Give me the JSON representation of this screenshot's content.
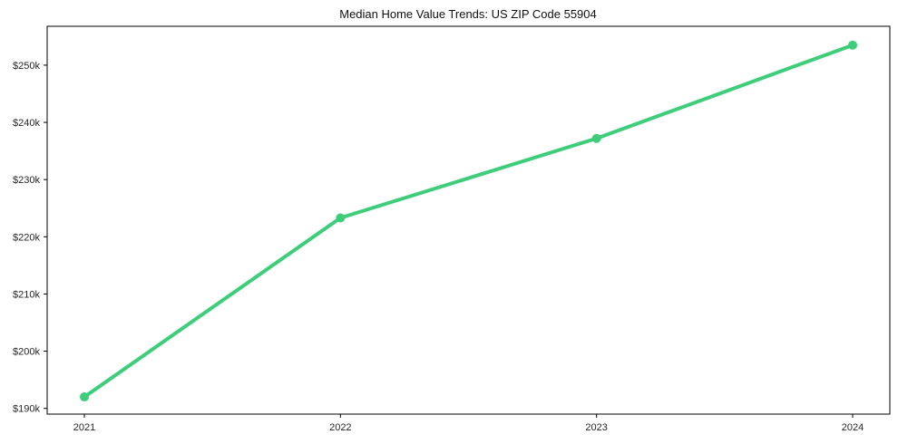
{
  "chart_data": {
    "type": "line",
    "title": "Median Home Value Trends: US ZIP Code 55904",
    "x": [
      "2021",
      "2022",
      "2023",
      "2024"
    ],
    "series": [
      {
        "name": "Median Home Value",
        "values": [
          192000,
          223300,
          237200,
          253500
        ]
      }
    ],
    "xlabel": "",
    "ylabel": "",
    "ylim": [
      189000,
      256800
    ],
    "yticks": [
      190000,
      200000,
      210000,
      220000,
      230000,
      240000,
      250000
    ],
    "ytick_labels": [
      "$190k",
      "$200k",
      "$210k",
      "$220k",
      "$230k",
      "$240k",
      "$250k"
    ],
    "xtick_labels": [
      "2021",
      "2022",
      "2023",
      "2024"
    ],
    "grid": false,
    "legend_position": "none",
    "line_color": "#3ecd7b",
    "marker": "circle",
    "axis_color": "#000000",
    "background_color": "#ffffff"
  }
}
